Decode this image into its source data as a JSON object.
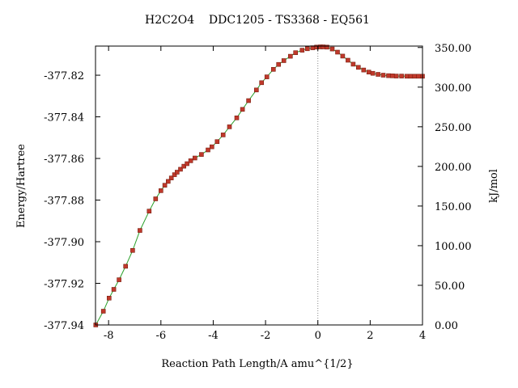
{
  "chart_data": {
    "type": "line",
    "title": "H2C2O4    DDC1205 - TS3368 - EQ561",
    "xlabel": "Reaction Path Length/A amu^{1/2}",
    "ylabel": "Energy/Hartree",
    "y2label": "kJ/mol",
    "xlim": [
      -8.5,
      4.0
    ],
    "ylim": [
      -377.94,
      -377.806
    ],
    "y2lim": [
      0.0,
      351.8
    ],
    "x_ticks": [
      -8,
      -6,
      -4,
      -2,
      0,
      2,
      4
    ],
    "x_tick_labels": [
      "-8",
      "-6",
      "-4",
      "-2",
      "0",
      "2",
      "4"
    ],
    "y_ticks": [
      -377.94,
      -377.92,
      -377.9,
      -377.88,
      -377.86,
      -377.84,
      -377.82
    ],
    "y_tick_labels": [
      "-377.94",
      "-377.92",
      "-377.90",
      "-377.88",
      "-377.86",
      "-377.84",
      "-377.82"
    ],
    "y2_ticks": [
      0,
      50,
      100,
      150,
      200,
      250,
      300,
      350
    ],
    "y2_tick_labels": [
      "0.00",
      "50.00",
      "100.00",
      "150.00",
      "200.00",
      "250.00",
      "300.00",
      "350.00"
    ],
    "ts_marker_x": 0,
    "line_color": "#2aa02a",
    "marker_color": "#c0392b",
    "series": [
      {
        "x": [
          -8.49,
          -8.2,
          -7.98,
          -7.8,
          -7.6,
          -7.35,
          -7.08,
          -6.8,
          -6.45,
          -6.2,
          -6.0,
          -5.85,
          -5.72,
          -5.6,
          -5.48,
          -5.38,
          -5.25,
          -5.12,
          -5.0,
          -4.86,
          -4.7,
          -4.45,
          -4.2,
          -4.05,
          -3.85,
          -3.62,
          -3.38,
          -3.1,
          -2.88,
          -2.65,
          -2.35,
          -2.15,
          -1.95,
          -1.7,
          -1.5,
          -1.3,
          -1.05,
          -0.85,
          -0.6,
          -0.4,
          -0.2,
          -0.05,
          0.1,
          0.2,
          0.35,
          0.55,
          0.75,
          0.95,
          1.15,
          1.35,
          1.55,
          1.75,
          1.95,
          2.1,
          2.3,
          2.5,
          2.7,
          2.85,
          3.0,
          3.2,
          3.4,
          3.55,
          3.7,
          3.85,
          4.0
        ],
        "y": [
          -377.94,
          -377.9334,
          -377.9271,
          -377.9229,
          -377.9183,
          -377.9118,
          -377.9042,
          -377.8946,
          -377.8853,
          -377.8794,
          -377.8755,
          -377.8729,
          -377.871,
          -377.8694,
          -377.8678,
          -377.8666,
          -377.8652,
          -377.8637,
          -377.8625,
          -377.8611,
          -377.8598,
          -377.8581,
          -377.8559,
          -377.8544,
          -377.8519,
          -377.8487,
          -377.8448,
          -377.8405,
          -377.8364,
          -377.8322,
          -377.8271,
          -377.8236,
          -377.8208,
          -377.8172,
          -377.8148,
          -377.813,
          -377.8109,
          -377.8092,
          -377.808,
          -377.8073,
          -377.8068,
          -377.8065,
          -377.8064,
          -377.8064,
          -377.8065,
          -377.8074,
          -377.8089,
          -377.8108,
          -377.8128,
          -377.8147,
          -377.8162,
          -377.8175,
          -377.8185,
          -377.8191,
          -377.8196,
          -377.82,
          -377.8202,
          -377.8203,
          -377.8204,
          -377.8204,
          -377.8205,
          -377.8205,
          -377.8205,
          -377.8205,
          -377.8205
        ]
      }
    ]
  }
}
